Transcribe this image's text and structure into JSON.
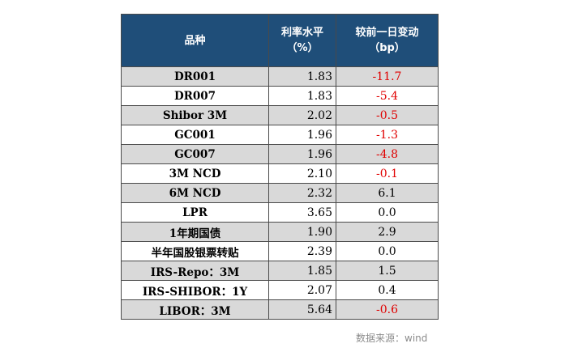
{
  "table": {
    "headers": {
      "name": "品种",
      "rate_line1": "利率水平",
      "rate_line2": "（%）",
      "change_line1": "较前一日变动",
      "change_line2": "（bp）"
    },
    "rows": [
      {
        "name": "DR001",
        "rate": "1.83",
        "change": "-11.7",
        "negative": true
      },
      {
        "name": "DR007",
        "rate": "1.83",
        "change": "-5.4",
        "negative": true
      },
      {
        "name": "Shibor 3M",
        "rate": "2.02",
        "change": "-0.5",
        "negative": true
      },
      {
        "name": "GC001",
        "rate": "1.96",
        "change": "-1.3",
        "negative": true
      },
      {
        "name": "GC007",
        "rate": "1.96",
        "change": "-4.8",
        "negative": true
      },
      {
        "name": "3M NCD",
        "rate": "2.10",
        "change": "-0.1",
        "negative": true
      },
      {
        "name": "6M NCD",
        "rate": "2.32",
        "change": "6.1",
        "negative": false
      },
      {
        "name": "LPR",
        "rate": "3.65",
        "change": "0.0",
        "negative": false
      },
      {
        "name": "1年期国债",
        "rate": "1.90",
        "change": "2.9",
        "negative": false
      },
      {
        "name": "半年国股银票转贴",
        "rate": "2.39",
        "change": "0.0",
        "negative": false
      },
      {
        "name": "IRS-Repo：3M",
        "rate": "1.85",
        "change": "1.5",
        "negative": false
      },
      {
        "name": "IRS-SHIBOR：1Y",
        "rate": "2.07",
        "change": "0.4",
        "negative": false
      },
      {
        "name": "LIBOR：3M",
        "rate": "5.64",
        "change": "-0.6",
        "negative": true
      }
    ]
  },
  "source": "数据来源：wind",
  "colors": {
    "header_bg": "#1f4e79",
    "shaded_row": "#d9d9d9",
    "negative_text": "#e00000",
    "source_text": "#8c8c8c"
  }
}
